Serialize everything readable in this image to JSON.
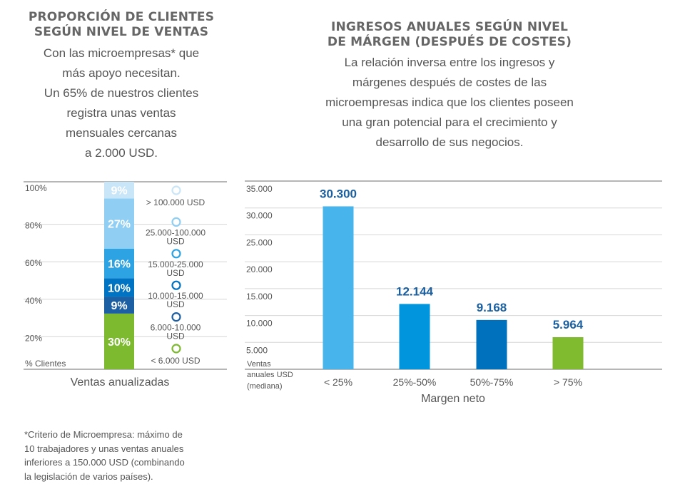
{
  "left": {
    "title": "PROPORCIÓN DE CLIENTES\nSEGÚN NIVEL DE VENTAS",
    "description": "Con las microempresas* que\nmás apoyo necesitan.\nUn 65% de nuestros clientes\nregistra unas ventas\nmensuales cercanas\na 2.000 USD.",
    "footnote": "*Criterio de Microempresa: máximo de\n10 trabajadores y unas ventas anuales\ninferiores a 150.000 USD (combinando\nla legislación de varios países)."
  },
  "right": {
    "title": "INGRESOS ANUALES SEGÚN NIVEL\nDE MÁRGEN (DESPUÉS DE COSTES)",
    "description": "La relación inversa entre los ingresos y\nmárgenes después de costes de las\nmicroempresas indica que los clientes poseen\nuna gran potencial para el crecimiento y\ndesarrollo de sus negocios."
  },
  "chart_data": [
    {
      "type": "bar",
      "subtype": "stacked-100",
      "ylabel": "% Clientes",
      "xlabel": "Ventas anualizadas",
      "ylim": [
        0,
        100
      ],
      "yticks": [
        "20%",
        "40%",
        "60%",
        "80%",
        "100%"
      ],
      "ytick_values": [
        20,
        40,
        60,
        80,
        100
      ],
      "grid": true,
      "segments": [
        {
          "name": "< 6.000 USD",
          "value": 30,
          "label": "30%",
          "color": "#7dba2f"
        },
        {
          "name": "6.000-10.000 USD",
          "value": 9,
          "label": "9%",
          "color": "#1d5fa3"
        },
        {
          "name": "10.000-15.000 USD",
          "value": 10,
          "label": "10%",
          "color": "#0073c2"
        },
        {
          "name": "15.000-25.000 USD",
          "value": 16,
          "label": "16%",
          "color": "#2ea3e3"
        },
        {
          "name": "25.000-100.000 USD",
          "value": 27,
          "label": "27%",
          "color": "#90cef3"
        },
        {
          "name": "> 100.000 USD",
          "value": 9,
          "label": "9%",
          "color": "#c9e6f8"
        }
      ]
    },
    {
      "type": "bar",
      "xlabel": "Margen neto",
      "ylabel": "Ventas anuales USD (mediana)",
      "ylim": [
        0,
        35000
      ],
      "yticks": [
        "5.000",
        "10.000",
        "15.000",
        "20.000",
        "25.000",
        "30.000",
        "35.000"
      ],
      "ytick_values": [
        5000,
        10000,
        15000,
        20000,
        25000,
        30000,
        35000
      ],
      "grid": true,
      "categories": [
        "< 25%",
        "25%-50%",
        "50%-75%",
        "> 75%"
      ],
      "values": [
        30300,
        12144,
        9168,
        5964
      ],
      "labels": [
        "30.300",
        "12.144",
        "9.168",
        "5.964"
      ],
      "colors": [
        "#47b5ec",
        "#0095dc",
        "#0071bc",
        "#80ba2f"
      ],
      "label_color": "#1a5fa0"
    }
  ]
}
